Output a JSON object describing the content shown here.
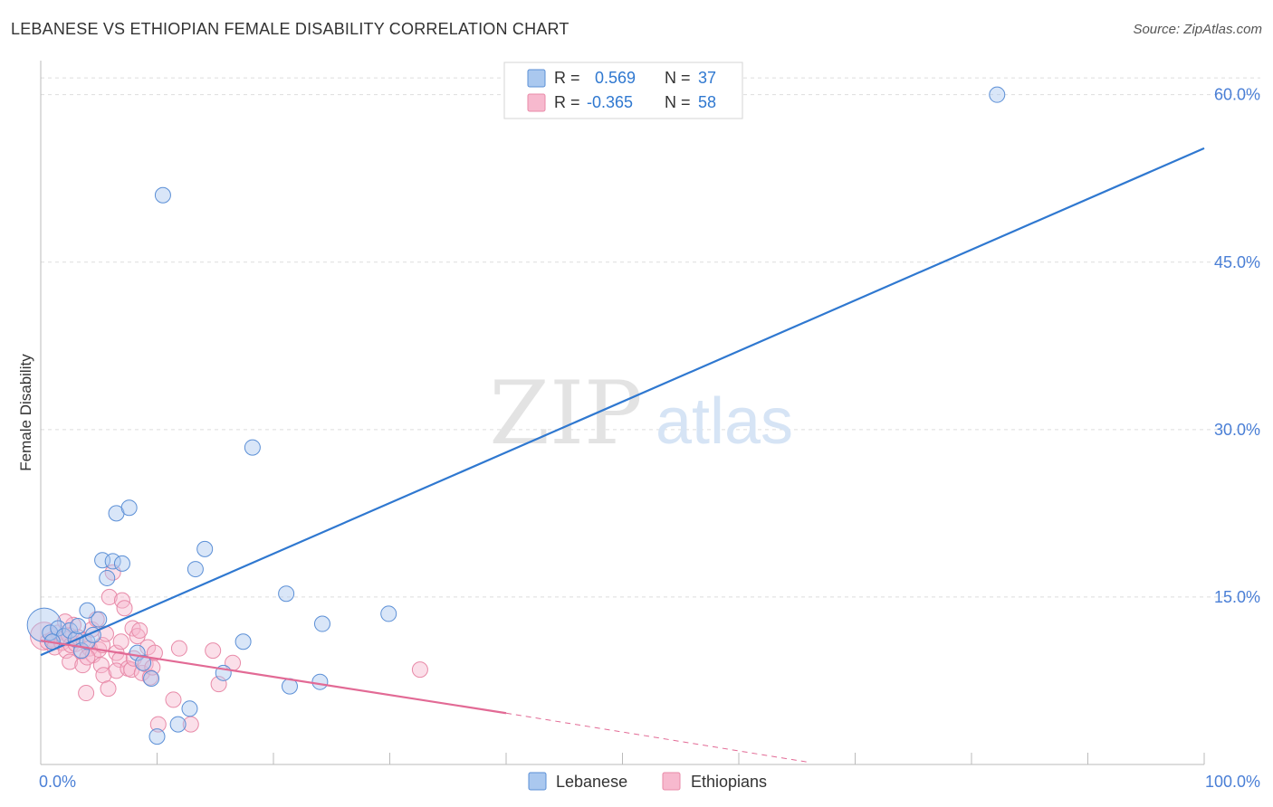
{
  "title": "LEBANESE VS ETHIOPIAN FEMALE DISABILITY CORRELATION CHART",
  "source": "Source: ZipAtlas.com",
  "watermark": {
    "zip": "ZIP",
    "atlas": "atlas"
  },
  "colors": {
    "lebanese_fill": "#aac8ef",
    "lebanese_stroke": "#5b8fd6",
    "lebanese_line": "#2f78d0",
    "ethiopian_fill": "#f7b9ce",
    "ethiopian_stroke": "#e88aa8",
    "ethiopian_line": "#e26a95",
    "axis_label": "#4a7fd6",
    "grid": "#dddddd",
    "axis": "#bbbbbb"
  },
  "legend": [
    {
      "r_label": "R =",
      "r_value": "0.569",
      "n_label": "N =",
      "n_value": "37"
    },
    {
      "r_label": "R =",
      "r_value": "-0.365",
      "n_label": "N =",
      "n_value": "58"
    }
  ],
  "chart_data": {
    "type": "scatter",
    "title": "LEBANESE VS ETHIOPIAN FEMALE DISABILITY CORRELATION CHART",
    "xlabel": "",
    "ylabel": "Female Disability",
    "xlim": [
      0,
      100
    ],
    "ylim": [
      0,
      62
    ],
    "x_tick_labels": [
      "0.0%",
      "100.0%"
    ],
    "y_ticks": [
      15,
      30,
      45,
      60
    ],
    "y_tick_labels": [
      "15.0%",
      "30.0%",
      "45.0%",
      "60.0%"
    ],
    "legend_position": "bottom-center",
    "series": [
      {
        "name": "Lebanese",
        "r": 0.569,
        "n": 37,
        "trend": {
          "x": [
            0,
            100
          ],
          "y": [
            9.8,
            55.2
          ]
        },
        "points": [
          {
            "x": 0.3,
            "y": 12.5,
            "s": 2.2
          },
          {
            "x": 0.8,
            "y": 11.8,
            "s": 1
          },
          {
            "x": 1.5,
            "y": 12.2,
            "s": 1
          },
          {
            "x": 2.0,
            "y": 11.5,
            "s": 1
          },
          {
            "x": 2.5,
            "y": 12.0,
            "s": 1
          },
          {
            "x": 3.0,
            "y": 11.2,
            "s": 1
          },
          {
            "x": 3.5,
            "y": 10.2,
            "s": 1
          },
          {
            "x": 4.0,
            "y": 11.0,
            "s": 1
          },
          {
            "x": 4.5,
            "y": 11.6,
            "s": 1
          },
          {
            "x": 5.0,
            "y": 13.0,
            "s": 1
          },
          {
            "x": 4.0,
            "y": 13.8,
            "s": 1
          },
          {
            "x": 5.3,
            "y": 18.3,
            "s": 1
          },
          {
            "x": 5.7,
            "y": 16.7,
            "s": 1
          },
          {
            "x": 6.2,
            "y": 18.2,
            "s": 1
          },
          {
            "x": 6.5,
            "y": 22.5,
            "s": 1
          },
          {
            "x": 7.0,
            "y": 18.0,
            "s": 1
          },
          {
            "x": 7.6,
            "y": 23.0,
            "s": 1
          },
          {
            "x": 8.3,
            "y": 10.0,
            "s": 1
          },
          {
            "x": 8.8,
            "y": 9.1,
            "s": 1
          },
          {
            "x": 9.5,
            "y": 7.7,
            "s": 1
          },
          {
            "x": 10.0,
            "y": 2.5,
            "s": 1
          },
          {
            "x": 10.5,
            "y": 51.0,
            "s": 1
          },
          {
            "x": 11.8,
            "y": 3.6,
            "s": 1
          },
          {
            "x": 12.8,
            "y": 5.0,
            "s": 1
          },
          {
            "x": 13.3,
            "y": 17.5,
            "s": 1
          },
          {
            "x": 14.1,
            "y": 19.3,
            "s": 1
          },
          {
            "x": 15.7,
            "y": 8.2,
            "s": 1
          },
          {
            "x": 17.4,
            "y": 11.0,
            "s": 1
          },
          {
            "x": 18.2,
            "y": 28.4,
            "s": 1
          },
          {
            "x": 21.1,
            "y": 15.3,
            "s": 1
          },
          {
            "x": 21.4,
            "y": 7.0,
            "s": 1
          },
          {
            "x": 24.0,
            "y": 7.4,
            "s": 1
          },
          {
            "x": 24.2,
            "y": 12.6,
            "s": 1
          },
          {
            "x": 29.9,
            "y": 13.5,
            "s": 1
          },
          {
            "x": 82.2,
            "y": 60.0,
            "s": 1
          },
          {
            "x": 1.0,
            "y": 11.0,
            "s": 1
          },
          {
            "x": 3.2,
            "y": 12.4,
            "s": 1
          }
        ]
      },
      {
        "name": "Ethiopians",
        "r": -0.365,
        "n": 58,
        "trend": {
          "x": [
            0,
            40
          ],
          "y": [
            11.1,
            4.6
          ]
        },
        "trend_dashed": {
          "x": [
            40,
            66
          ],
          "y": [
            4.6,
            0.2
          ]
        },
        "points": [
          {
            "x": 0.3,
            "y": 11.5,
            "s": 1.8
          },
          {
            "x": 0.6,
            "y": 11.0,
            "s": 1
          },
          {
            "x": 1.0,
            "y": 11.2,
            "s": 1
          },
          {
            "x": 1.2,
            "y": 10.5,
            "s": 1
          },
          {
            "x": 1.5,
            "y": 11.8,
            "s": 1
          },
          {
            "x": 1.8,
            "y": 10.9,
            "s": 1
          },
          {
            "x": 2.0,
            "y": 11.3,
            "s": 1
          },
          {
            "x": 2.2,
            "y": 10.2,
            "s": 1
          },
          {
            "x": 2.4,
            "y": 11.6,
            "s": 1
          },
          {
            "x": 2.6,
            "y": 10.7,
            "s": 1
          },
          {
            "x": 2.8,
            "y": 12.5,
            "s": 1
          },
          {
            "x": 2.5,
            "y": 9.2,
            "s": 1
          },
          {
            "x": 3.0,
            "y": 10.8,
            "s": 1
          },
          {
            "x": 3.2,
            "y": 11.4,
            "s": 1
          },
          {
            "x": 3.5,
            "y": 10.1,
            "s": 1
          },
          {
            "x": 3.7,
            "y": 11.1,
            "s": 1
          },
          {
            "x": 3.6,
            "y": 8.9,
            "s": 1
          },
          {
            "x": 3.9,
            "y": 6.4,
            "s": 1
          },
          {
            "x": 4.2,
            "y": 10.4,
            "s": 1
          },
          {
            "x": 4.4,
            "y": 12.1,
            "s": 1
          },
          {
            "x": 4.5,
            "y": 9.8,
            "s": 1
          },
          {
            "x": 4.8,
            "y": 13.0,
            "s": 1
          },
          {
            "x": 5.0,
            "y": 10.3,
            "s": 1
          },
          {
            "x": 5.2,
            "y": 8.9,
            "s": 1
          },
          {
            "x": 5.3,
            "y": 10.7,
            "s": 1
          },
          {
            "x": 5.6,
            "y": 11.7,
            "s": 1
          },
          {
            "x": 5.4,
            "y": 8.0,
            "s": 1
          },
          {
            "x": 5.9,
            "y": 15.0,
            "s": 1
          },
          {
            "x": 5.8,
            "y": 6.8,
            "s": 1
          },
          {
            "x": 6.2,
            "y": 17.2,
            "s": 1
          },
          {
            "x": 6.5,
            "y": 10.0,
            "s": 1
          },
          {
            "x": 6.8,
            "y": 9.4,
            "s": 1
          },
          {
            "x": 6.5,
            "y": 8.4,
            "s": 1
          },
          {
            "x": 7.0,
            "y": 14.7,
            "s": 1
          },
          {
            "x": 7.2,
            "y": 14.0,
            "s": 1
          },
          {
            "x": 7.5,
            "y": 8.6,
            "s": 1
          },
          {
            "x": 7.8,
            "y": 8.5,
            "s": 1
          },
          {
            "x": 7.9,
            "y": 12.2,
            "s": 1
          },
          {
            "x": 8.0,
            "y": 9.5,
            "s": 1
          },
          {
            "x": 8.3,
            "y": 11.5,
            "s": 1
          },
          {
            "x": 8.5,
            "y": 12.0,
            "s": 1
          },
          {
            "x": 8.7,
            "y": 8.2,
            "s": 1
          },
          {
            "x": 9.0,
            "y": 9.0,
            "s": 1
          },
          {
            "x": 9.2,
            "y": 10.5,
            "s": 1
          },
          {
            "x": 9.4,
            "y": 7.8,
            "s": 1
          },
          {
            "x": 9.6,
            "y": 8.7,
            "s": 1
          },
          {
            "x": 9.8,
            "y": 10.0,
            "s": 1
          },
          {
            "x": 10.1,
            "y": 3.6,
            "s": 1
          },
          {
            "x": 11.4,
            "y": 5.8,
            "s": 1
          },
          {
            "x": 11.9,
            "y": 10.4,
            "s": 1
          },
          {
            "x": 12.9,
            "y": 3.6,
            "s": 1
          },
          {
            "x": 14.8,
            "y": 10.2,
            "s": 1
          },
          {
            "x": 15.3,
            "y": 7.2,
            "s": 1
          },
          {
            "x": 16.5,
            "y": 9.1,
            "s": 1
          },
          {
            "x": 32.6,
            "y": 8.5,
            "s": 1
          },
          {
            "x": 2.1,
            "y": 12.8,
            "s": 1
          },
          {
            "x": 4.0,
            "y": 9.6,
            "s": 1
          },
          {
            "x": 6.9,
            "y": 11.0,
            "s": 1
          }
        ]
      }
    ]
  }
}
